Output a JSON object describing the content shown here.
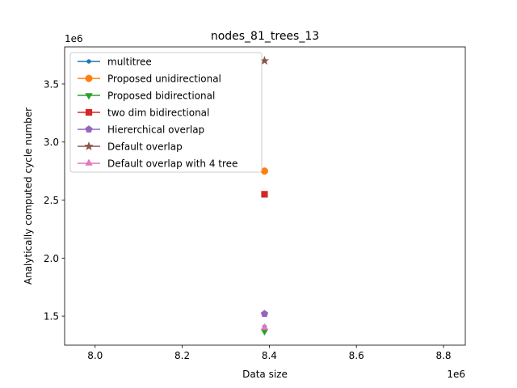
{
  "chart_data": {
    "type": "scatter",
    "title": "nodes_81_trees_13",
    "xlabel": "Data size",
    "ylabel": "Analytically computed cycle number",
    "x_offset_label": "1e6",
    "y_offset_label": "1e6",
    "xlim": [
      7.93,
      8.85
    ],
    "ylim": [
      1.25,
      3.82
    ],
    "x_ticks": [
      8.0,
      8.2,
      8.4,
      8.6,
      8.8
    ],
    "x_tick_labels": [
      "8.0",
      "8.2",
      "8.4",
      "8.6",
      "8.8"
    ],
    "y_ticks": [
      1.5,
      2.0,
      2.5,
      3.0,
      3.5
    ],
    "y_tick_labels": [
      "1.5",
      "2.0",
      "2.5",
      "3.0",
      "3.5"
    ],
    "grid": false,
    "legend_position": "top-left",
    "series": [
      {
        "name": "multitree",
        "color": "#1f77b4",
        "marker": "point",
        "x": [
          8.389
        ],
        "y": [
          1.41
        ]
      },
      {
        "name": "Proposed unidirectional",
        "color": "#ff7f0e",
        "marker": "circle",
        "x": [
          8.389
        ],
        "y": [
          2.75
        ]
      },
      {
        "name": "Proposed bidirectional",
        "color": "#2ca02c",
        "marker": "triangle-down",
        "x": [
          8.389
        ],
        "y": [
          1.37
        ]
      },
      {
        "name": "two dim bidirectional",
        "color": "#d62728",
        "marker": "square",
        "x": [
          8.389
        ],
        "y": [
          2.55
        ]
      },
      {
        "name": "Hiererchical overlap",
        "color": "#9467bd",
        "marker": "pentagon",
        "x": [
          8.389
        ],
        "y": [
          1.52
        ]
      },
      {
        "name": "Default overlap",
        "color": "#8c564b",
        "marker": "star",
        "x": [
          8.389
        ],
        "y": [
          3.7
        ]
      },
      {
        "name": "Default overlap with 4 tree",
        "color": "#e377c2",
        "marker": "triangle-up",
        "x": [
          8.389
        ],
        "y": [
          1.4
        ]
      }
    ]
  }
}
